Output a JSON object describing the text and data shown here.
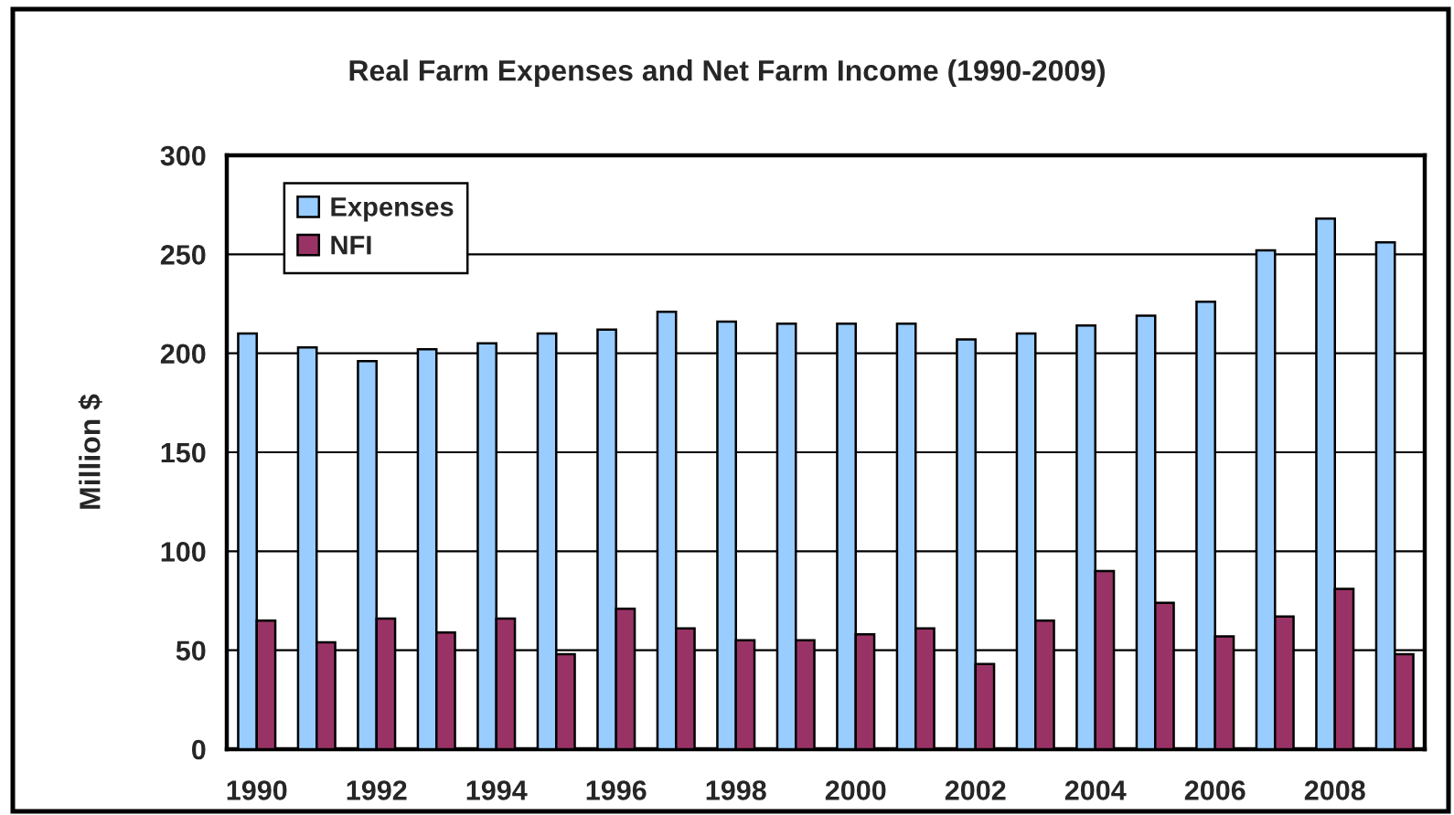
{
  "chart_data": {
    "type": "bar",
    "title": "Real Farm Expenses and Net Farm Income (1990-2009)",
    "ylabel": "Million $",
    "categories": [
      "1990",
      null,
      "1992",
      null,
      "1994",
      null,
      "1996",
      null,
      "1998",
      null,
      "2000",
      null,
      "2002",
      null,
      "2004",
      null,
      "2006",
      null,
      "2008",
      null
    ],
    "series": [
      {
        "name": "Expenses",
        "color": "#99ccff",
        "values": [
          210,
          203,
          196,
          202,
          205,
          210,
          212,
          221,
          216,
          215,
          215,
          215,
          207,
          210,
          214,
          219,
          226,
          252,
          268,
          256
        ]
      },
      {
        "name": "NFI",
        "color": "#993366",
        "values": [
          65,
          54,
          66,
          59,
          66,
          48,
          71,
          61,
          55,
          55,
          58,
          61,
          43,
          65,
          90,
          74,
          57,
          67,
          81,
          48
        ]
      }
    ],
    "ylim": [
      0,
      300
    ],
    "yticks": [
      0,
      50,
      100,
      150,
      200,
      250,
      300
    ],
    "grid": "y",
    "legend": "top left"
  }
}
